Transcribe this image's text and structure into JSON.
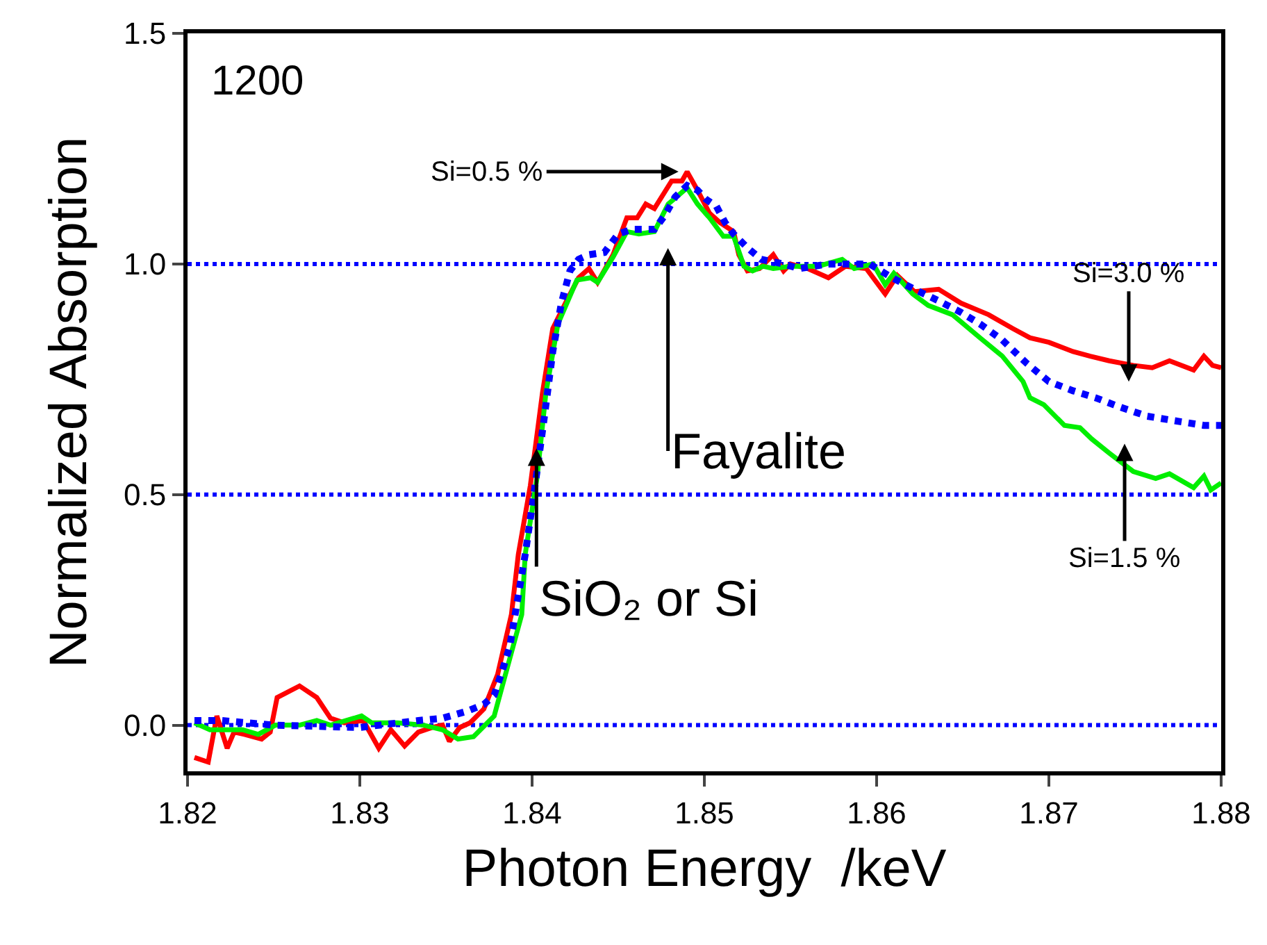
{
  "chart_data": {
    "type": "line",
    "xlabel": "Photon Energy  /keV",
    "ylabel": "Normalized Absorption",
    "xlim": [
      1.82,
      1.88
    ],
    "ylim": [
      -0.1,
      1.5
    ],
    "xticks": [
      1.82,
      1.83,
      1.84,
      1.85,
      1.86,
      1.87,
      1.88
    ],
    "yticks": [
      {
        "value": 0,
        "label": "0.0"
      },
      {
        "value": 0.5,
        "label": "0.5"
      },
      {
        "value": 1,
        "label": "1.0"
      },
      {
        "value": 1.5,
        "label": "1.5"
      }
    ],
    "marker": "none",
    "line_style": "solid",
    "ref_lines": [
      {
        "axis": "y",
        "value": 0,
        "label": null,
        "color": "#0000ff",
        "line_style": "dotted"
      },
      {
        "axis": "y",
        "value": 0.5,
        "label": null,
        "color": "#0000ff",
        "line_style": "dotted"
      },
      {
        "axis": "y",
        "value": 1,
        "label": null,
        "color": "#0000ff",
        "line_style": "dotted"
      }
    ],
    "series": [
      {
        "color": "#ff0000",
        "x": [
          1.8204,
          1.8212,
          1.8217,
          1.8223,
          1.8227,
          1.8233,
          1.8243,
          1.8248,
          1.8252,
          1.8265,
          1.8275,
          1.8283,
          1.8291,
          1.8302,
          1.8311,
          1.8318,
          1.8326,
          1.8334,
          1.8342,
          1.8348,
          1.8352,
          1.8358,
          1.8364,
          1.8372,
          1.838,
          1.8388,
          1.8392,
          1.8399,
          1.8406,
          1.8412,
          1.842,
          1.8427,
          1.8433,
          1.8438,
          1.8447,
          1.8455,
          1.8461,
          1.8466,
          1.8471,
          1.8481,
          1.8487,
          1.849,
          1.8496,
          1.8503,
          1.8509,
          1.8517,
          1.852,
          1.8525,
          1.8532,
          1.854,
          1.8546,
          1.855,
          1.856,
          1.8572,
          1.8582,
          1.8594,
          1.8605,
          1.8612,
          1.8622,
          1.8636,
          1.8649,
          1.8665,
          1.8679,
          1.8689,
          1.87,
          1.8714,
          1.8724,
          1.8735,
          1.8749,
          1.876,
          1.877,
          1.8784,
          1.879,
          1.8795,
          1.88
        ],
        "values": [
          -0.07,
          -0.08,
          0.02,
          -0.05,
          -0.015,
          -0.02,
          -0.03,
          -0.015,
          0.06,
          0.085,
          0.06,
          0.015,
          0.005,
          0.01,
          -0.05,
          -0.01,
          -0.045,
          -0.015,
          -0.005,
          0.0,
          -0.035,
          -0.005,
          0.005,
          0.035,
          0.11,
          0.24,
          0.37,
          0.52,
          0.72,
          0.86,
          0.92,
          0.97,
          0.99,
          0.96,
          1.02,
          1.1,
          1.1,
          1.13,
          1.12,
          1.18,
          1.18,
          1.2,
          1.16,
          1.11,
          1.09,
          1.07,
          1.02,
          0.985,
          0.99,
          1.02,
          0.985,
          1.0,
          0.99,
          0.97,
          0.995,
          0.99,
          0.935,
          0.975,
          0.94,
          0.945,
          0.915,
          0.89,
          0.86,
          0.84,
          0.83,
          0.81,
          0.8,
          0.79,
          0.78,
          0.775,
          0.79,
          0.77,
          0.8,
          0.78,
          0.775
        ]
      },
      {
        "color": "#00ee00",
        "x": [
          1.8204,
          1.8213,
          1.8222,
          1.8232,
          1.8241,
          1.8251,
          1.8265,
          1.8275,
          1.8283,
          1.8301,
          1.8307,
          1.8322,
          1.8337,
          1.8348,
          1.8357,
          1.8366,
          1.8378,
          1.8386,
          1.8394,
          1.8396,
          1.8403,
          1.8408,
          1.8415,
          1.8426,
          1.8434,
          1.8438,
          1.8447,
          1.8455,
          1.8462,
          1.8471,
          1.8479,
          1.849,
          1.8496,
          1.8503,
          1.8511,
          1.8517,
          1.8523,
          1.8528,
          1.8534,
          1.854,
          1.855,
          1.8566,
          1.858,
          1.8587,
          1.8598,
          1.8605,
          1.861,
          1.8621,
          1.863,
          1.8644,
          1.866,
          1.8673,
          1.8685,
          1.8689,
          1.8697,
          1.8709,
          1.8718,
          1.8725,
          1.8735,
          1.8749,
          1.8762,
          1.877,
          1.8784,
          1.879,
          1.8794,
          1.88
        ],
        "values": [
          0.005,
          -0.01,
          -0.01,
          -0.01,
          -0.02,
          0.0,
          0.0,
          0.01,
          0.0,
          0.02,
          0.005,
          0.005,
          0.0,
          -0.01,
          -0.03,
          -0.025,
          0.02,
          0.13,
          0.24,
          0.37,
          0.54,
          0.72,
          0.87,
          0.965,
          0.97,
          0.96,
          1.015,
          1.07,
          1.065,
          1.07,
          1.13,
          1.165,
          1.13,
          1.1,
          1.06,
          1.06,
          0.995,
          0.985,
          0.995,
          0.99,
          0.995,
          0.995,
          1.01,
          0.99,
          1.0,
          0.955,
          0.98,
          0.935,
          0.91,
          0.89,
          0.84,
          0.8,
          0.745,
          0.71,
          0.695,
          0.65,
          0.645,
          0.62,
          0.59,
          0.55,
          0.535,
          0.545,
          0.515,
          0.54,
          0.51,
          0.525
        ]
      },
      {
        "color": "#0000ff",
        "line_style": "dotted",
        "x": [
          1.8204,
          1.822,
          1.825,
          1.83,
          1.8334,
          1.8348,
          1.8362,
          1.8372,
          1.8378,
          1.8382,
          1.8387,
          1.8396,
          1.8401,
          1.8407,
          1.8412,
          1.8417,
          1.8422,
          1.8427,
          1.8433,
          1.8442,
          1.845,
          1.8458,
          1.8471,
          1.8477,
          1.8483,
          1.849,
          1.8496,
          1.8501,
          1.8507,
          1.8512,
          1.8517,
          1.8525,
          1.8533,
          1.8546,
          1.8555,
          1.8572,
          1.8596,
          1.8609,
          1.8622,
          1.8636,
          1.8649,
          1.866,
          1.8673,
          1.8687,
          1.87,
          1.8714,
          1.8727,
          1.8741,
          1.8757,
          1.8773,
          1.879,
          1.88
        ],
        "values": [
          0.01,
          0.01,
          0.0,
          -0.005,
          0.01,
          0.015,
          0.03,
          0.045,
          0.065,
          0.11,
          0.17,
          0.37,
          0.5,
          0.665,
          0.81,
          0.915,
          0.985,
          1.01,
          1.02,
          1.025,
          1.065,
          1.075,
          1.075,
          1.105,
          1.145,
          1.17,
          1.16,
          1.14,
          1.125,
          1.09,
          1.065,
          1.035,
          1.01,
          1.0,
          0.99,
          1.0,
          1.0,
          0.97,
          0.945,
          0.92,
          0.895,
          0.87,
          0.835,
          0.785,
          0.745,
          0.725,
          0.71,
          0.69,
          0.67,
          0.66,
          0.65,
          0.65
        ]
      }
    ],
    "annotations": [
      "1200",
      {
        "text": "Si=0.5 %",
        "x": 1.8485,
        "y": 1.2
      },
      "Fayalite",
      {
        "text": "SiO₂ or Si",
        "x": 1.8409,
        "y": 0.6
      },
      "Si=3.0 %",
      "Si=1.5 %"
    ]
  }
}
